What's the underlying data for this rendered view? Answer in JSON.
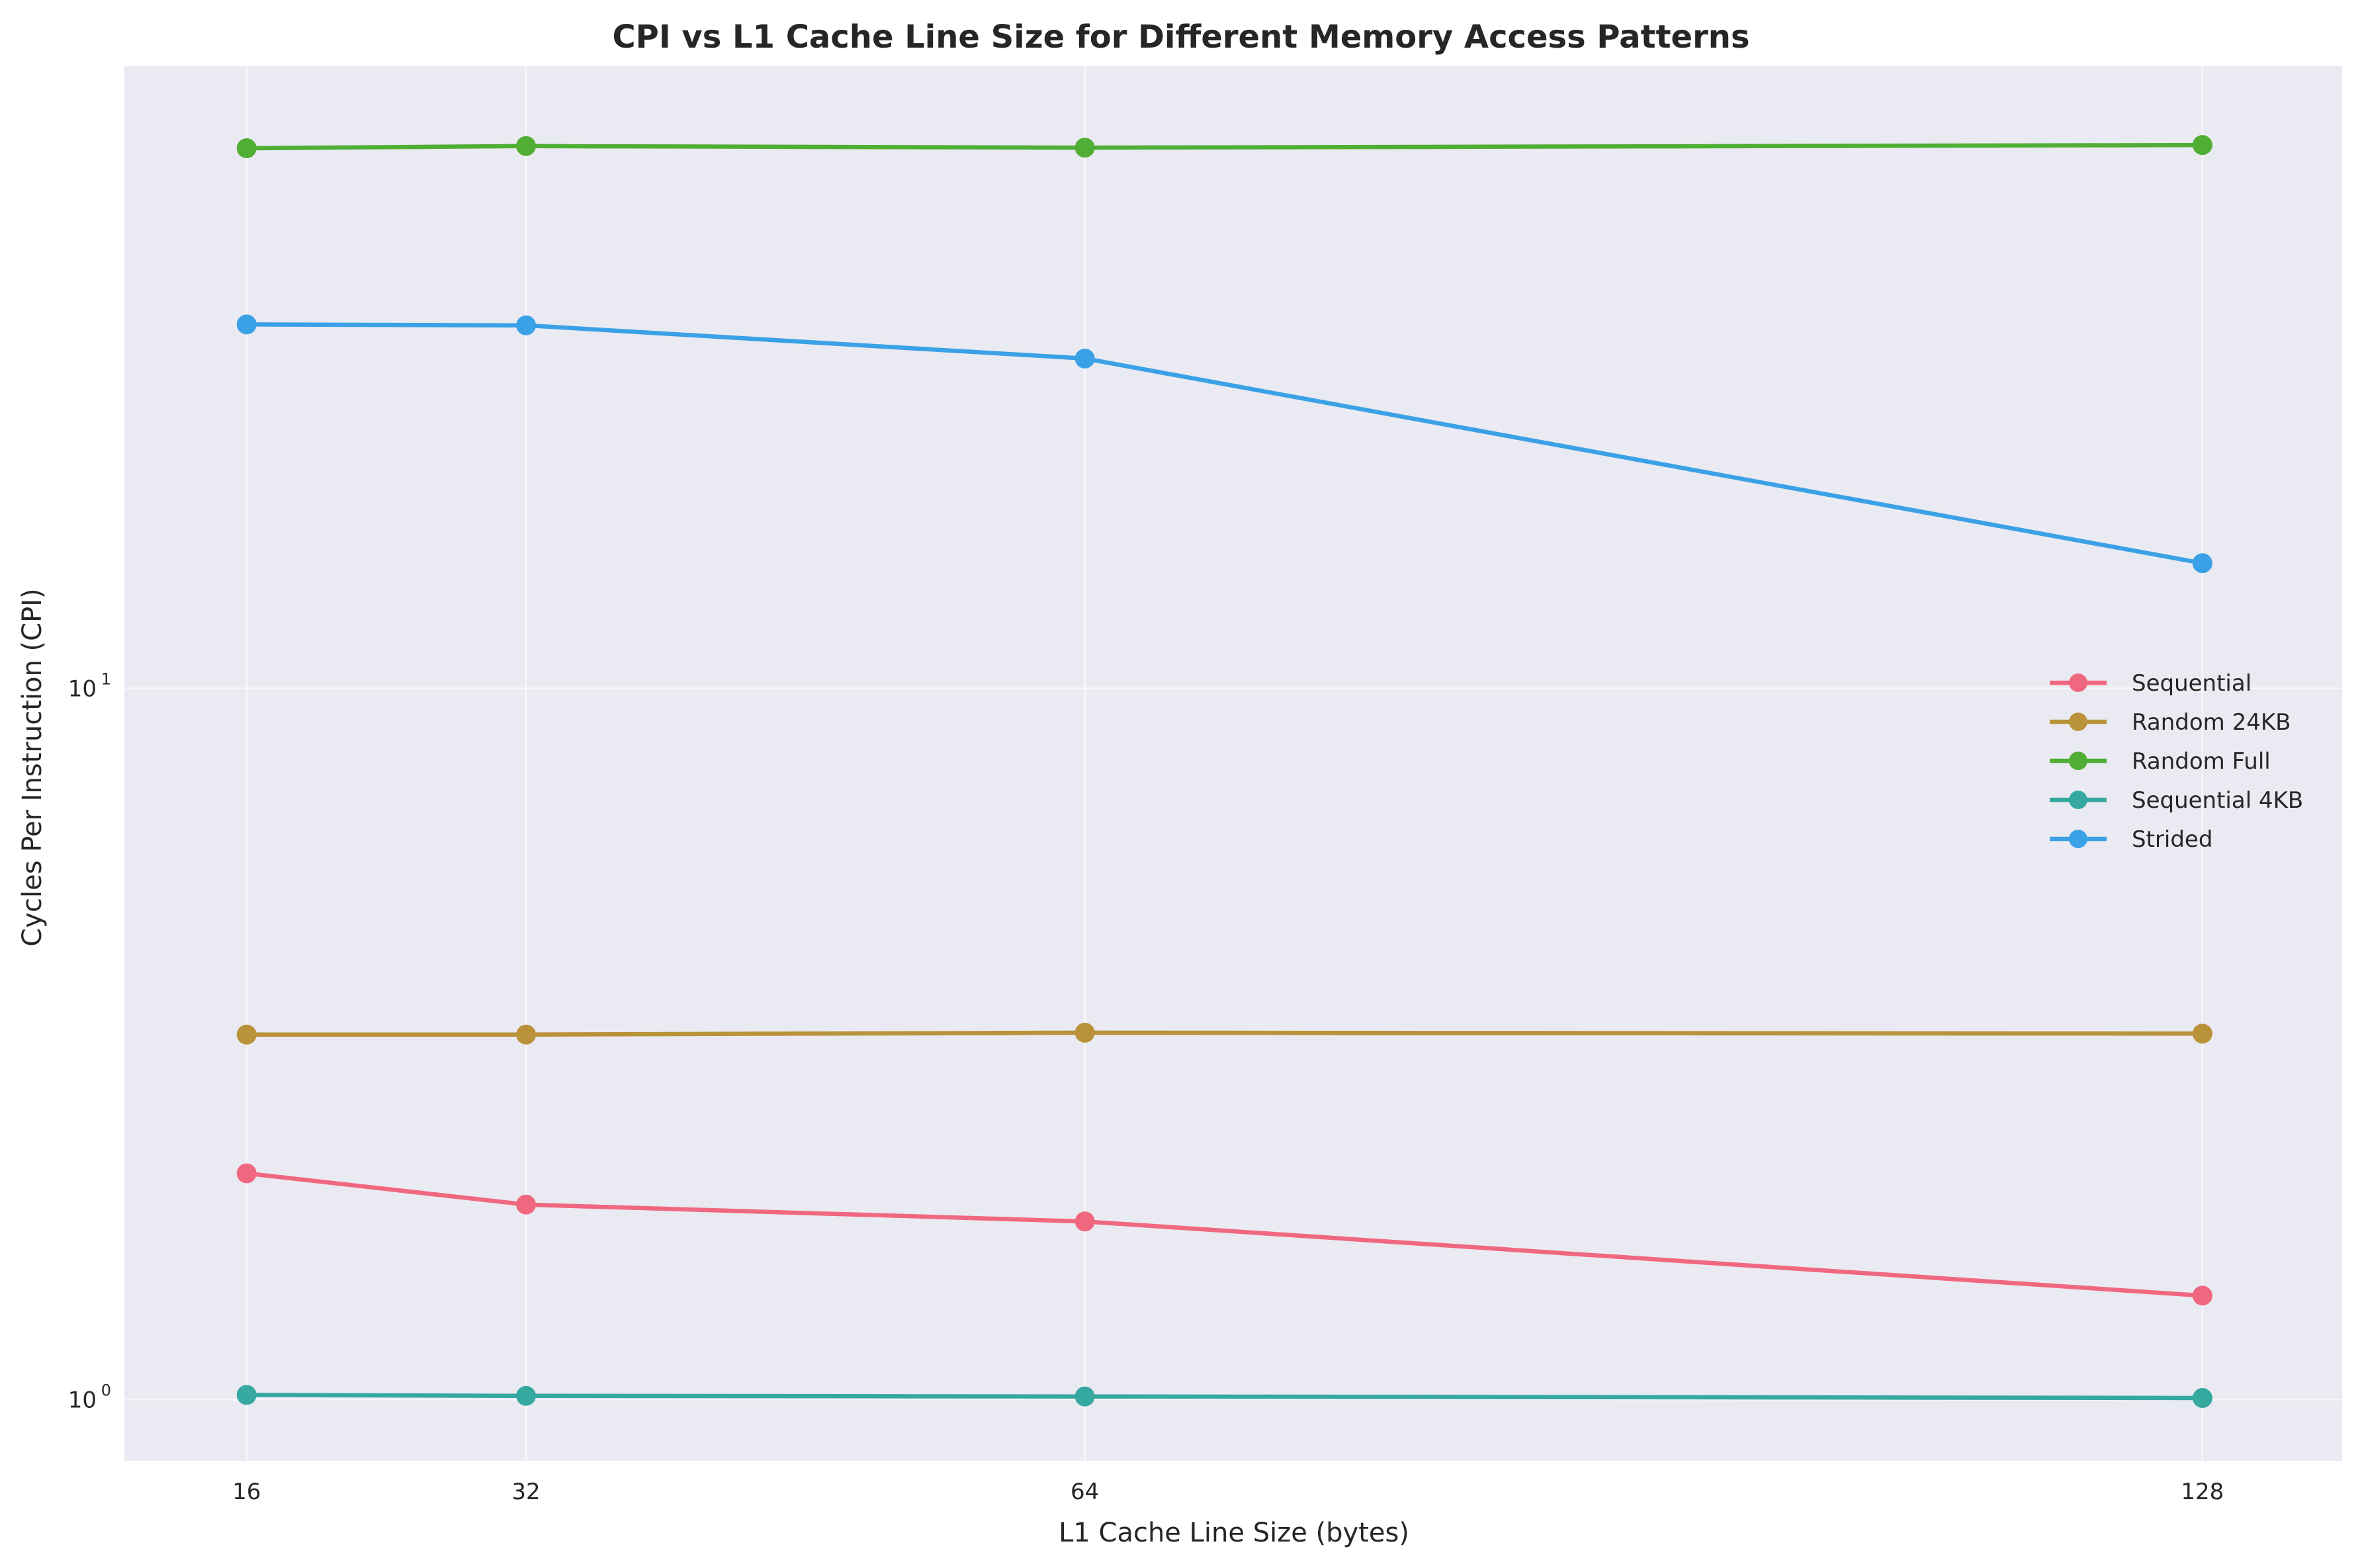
{
  "chart_data": {
    "type": "line",
    "title": "CPI vs L1 Cache Line Size for Different Memory Access Patterns",
    "xlabel": "L1 Cache Line Size (bytes)",
    "ylabel": "Cycles Per Instruction (CPI)",
    "x_scale": "linear",
    "y_scale": "log",
    "x": [
      16,
      32,
      64,
      128
    ],
    "x_ticks": [
      "16",
      "32",
      "64",
      "128"
    ],
    "y_ticks": [
      {
        "value": 1,
        "base": "10",
        "exp": "0"
      },
      {
        "value": 10,
        "base": "10",
        "exp": "1"
      }
    ],
    "xlim": [
      9,
      136
    ],
    "ylim": [
      0.82,
      75
    ],
    "grid": true,
    "legend_position": "center-right",
    "background": "#eaeaf2",
    "series": [
      {
        "name": "Sequential",
        "color": "#f0687f",
        "values": [
          2.08,
          1.88,
          1.78,
          1.4
        ]
      },
      {
        "name": "Random 24KB",
        "color": "#b9923a",
        "values": [
          3.26,
          3.26,
          3.28,
          3.27
        ]
      },
      {
        "name": "Random Full",
        "color": "#4fae33",
        "values": [
          57.5,
          57.9,
          57.6,
          58.1
        ]
      },
      {
        "name": "Sequential 4KB",
        "color": "#35a9a0",
        "values": [
          1.015,
          1.012,
          1.01,
          1.005
        ]
      },
      {
        "name": "Strided",
        "color": "#3ba1e6",
        "values": [
          32.5,
          32.4,
          29.1,
          15.0
        ]
      }
    ]
  }
}
